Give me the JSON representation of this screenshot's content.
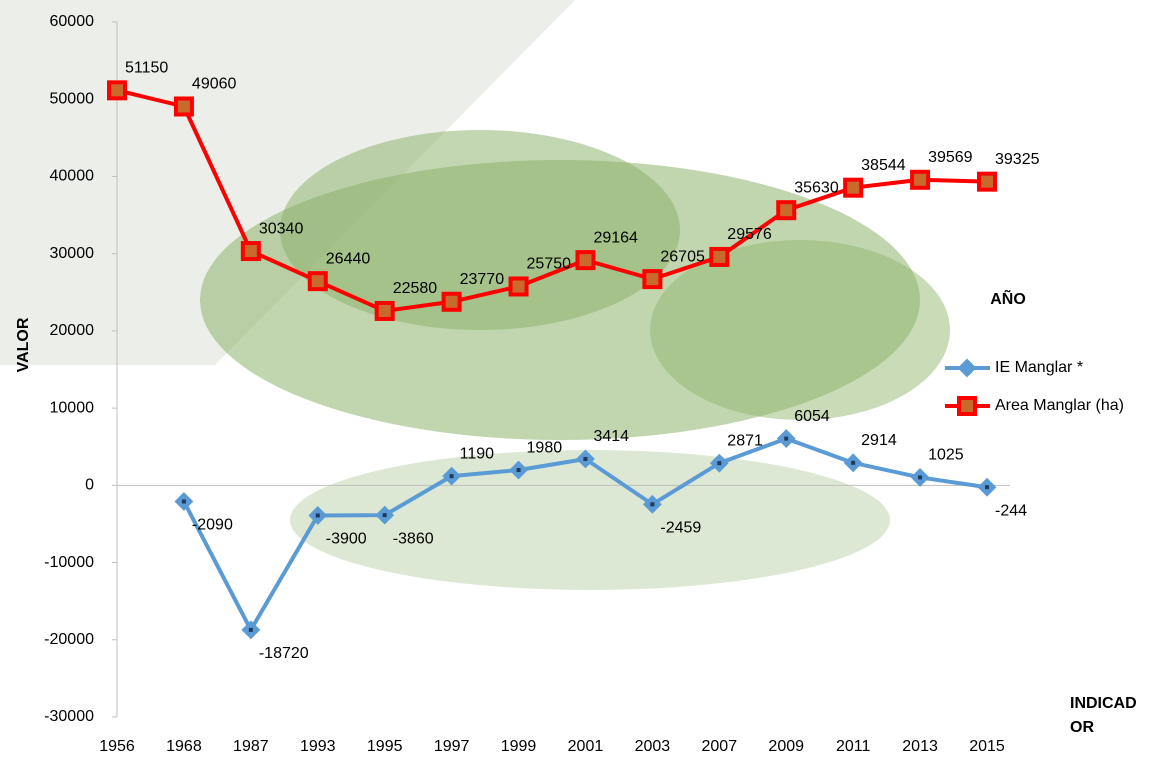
{
  "chart_data": {
    "type": "line",
    "y_label": "VALOR",
    "x_label": "INDICADOR",
    "legend_title": "AÑO",
    "categories": [
      "1956",
      "1968",
      "1987",
      "1993",
      "1995",
      "1997",
      "1999",
      "2001",
      "2003",
      "2007",
      "2009",
      "2011",
      "2013",
      "2015"
    ],
    "series": [
      {
        "name": "IE Manglar *",
        "color": "#5b9bd5",
        "marker": "diamond",
        "values": [
          null,
          -2090,
          -18720,
          -3900,
          -3860,
          1190,
          1980,
          3414,
          -2459,
          2871,
          6054,
          2914,
          1025,
          -244
        ]
      },
      {
        "name": "Area Manglar (ha)",
        "color": "#ff0000",
        "marker": "square",
        "values": [
          51150,
          49060,
          30340,
          26440,
          22580,
          23770,
          25750,
          29164,
          26705,
          29576,
          35630,
          38544,
          39569,
          39325
        ]
      }
    ],
    "ylim": [
      -30000,
      60000
    ],
    "yticks": [
      -30000,
      -20000,
      -10000,
      0,
      10000,
      20000,
      30000,
      40000,
      50000,
      60000
    ],
    "grid": false
  }
}
